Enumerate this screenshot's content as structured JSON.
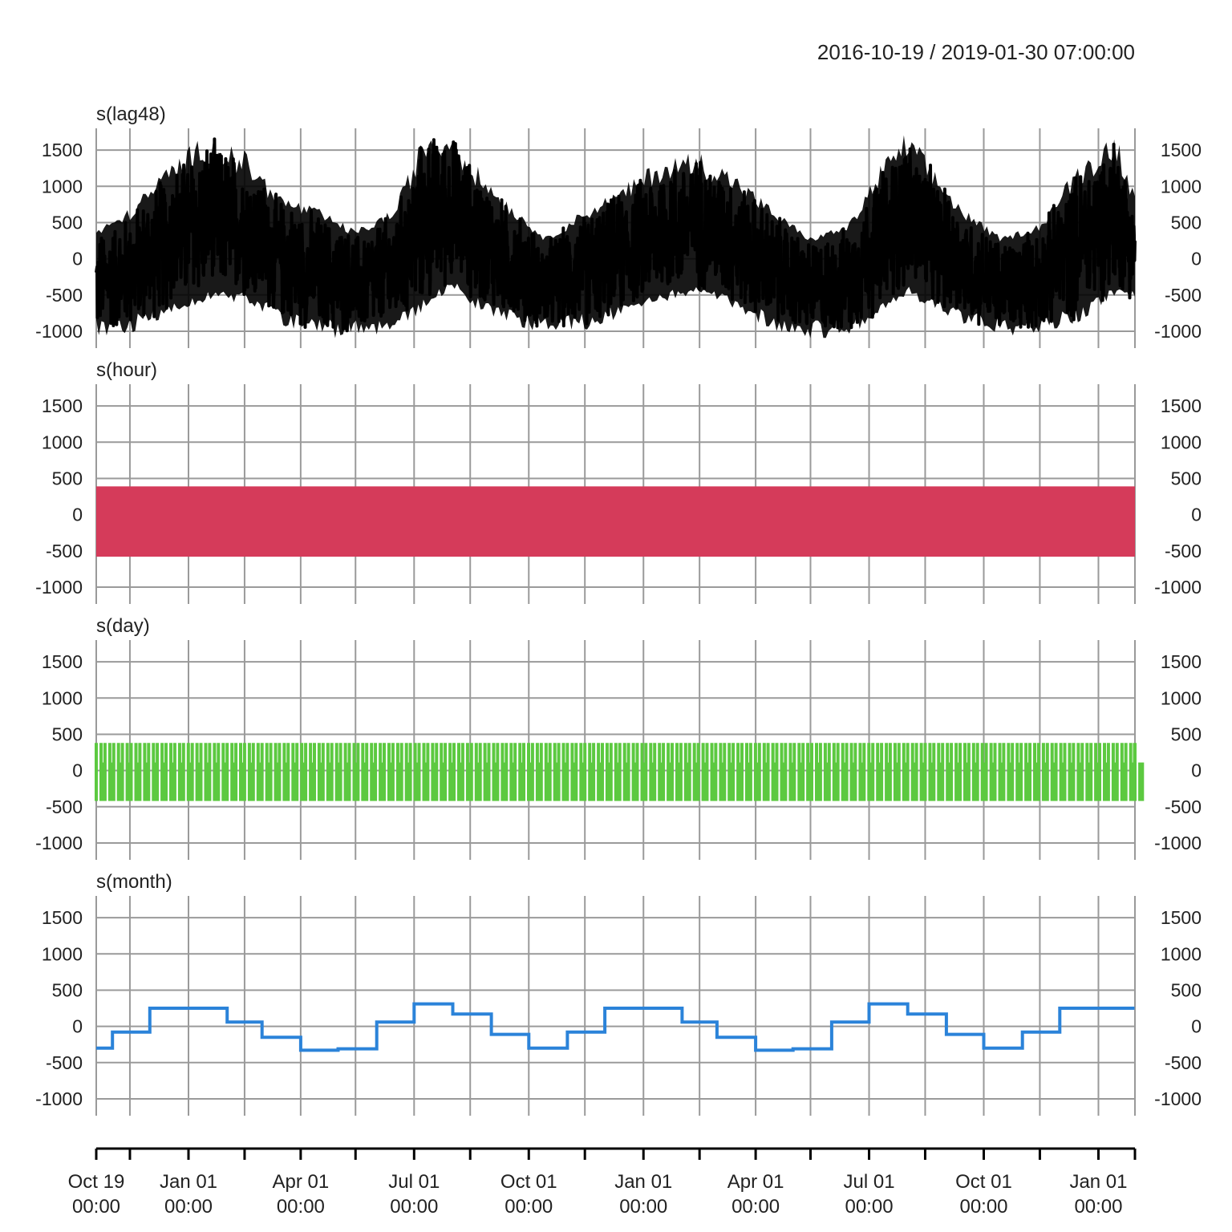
{
  "chart_data": {
    "type": "line",
    "title": "",
    "date_range_label": "2016-10-19 / 2019-01-30 07:00:00",
    "x_range": [
      "2016-10-19",
      "2019-01-30 07:00:00"
    ],
    "y_range": [
      -1100,
      1800
    ],
    "y_ticks": [
      1500,
      1000,
      500,
      0,
      -500,
      -1000
    ],
    "grid": true,
    "x_ticks": [
      {
        "date": "2016-10-19",
        "line1": "Oct 19",
        "line2": "00:00"
      },
      {
        "date": "2017-01-01",
        "line1": "Jan 01",
        "line2": "00:00"
      },
      {
        "date": "2017-04-01",
        "line1": "Apr 01",
        "line2": "00:00"
      },
      {
        "date": "2017-07-01",
        "line1": "Jul 01",
        "line2": "00:00"
      },
      {
        "date": "2017-10-01",
        "line1": "Oct 01",
        "line2": "00:00"
      },
      {
        "date": "2018-01-01",
        "line1": "Jan 01",
        "line2": "00:00"
      },
      {
        "date": "2018-04-01",
        "line1": "Apr 01",
        "line2": "00:00"
      },
      {
        "date": "2018-07-01",
        "line1": "Jul 01",
        "line2": "00:00"
      },
      {
        "date": "2018-10-01",
        "line1": "Oct 01",
        "line2": "00:00"
      },
      {
        "date": "2019-01-01",
        "line1": "Jan 01",
        "line2": "00:00"
      }
    ],
    "panels": [
      {
        "name": "s(lag48)",
        "color": "#000000",
        "kind": "noisy",
        "envelope_dates": [
          "2016-10-19",
          "2016-11-15",
          "2016-12-15",
          "2017-01-15",
          "2017-02-15",
          "2017-03-15",
          "2017-04-15",
          "2017-05-15",
          "2017-06-15",
          "2017-07-10",
          "2017-08-01",
          "2017-08-20",
          "2017-09-15",
          "2017-10-15",
          "2017-11-15",
          "2017-12-15",
          "2018-01-15",
          "2018-02-15",
          "2018-03-15",
          "2018-04-15",
          "2018-05-15",
          "2018-06-15",
          "2018-07-10",
          "2018-08-01",
          "2018-08-20",
          "2018-09-15",
          "2018-10-15",
          "2018-11-15",
          "2018-12-15",
          "2019-01-15",
          "2019-01-30"
        ],
        "upper": [
          400,
          700,
          1300,
          1750,
          1500,
          900,
          700,
          400,
          700,
          1800,
          1800,
          1300,
          800,
          300,
          700,
          1000,
          1400,
          1500,
          1200,
          700,
          300,
          500,
          1300,
          1800,
          1300,
          700,
          300,
          500,
          1300,
          1800,
          900
        ],
        "lower": [
          -1100,
          -1050,
          -800,
          -600,
          -600,
          -900,
          -1100,
          -1100,
          -1050,
          -700,
          -400,
          -700,
          -900,
          -1050,
          -1000,
          -800,
          -600,
          -500,
          -700,
          -1000,
          -1100,
          -1100,
          -800,
          -500,
          -700,
          -900,
          -1100,
          -1050,
          -900,
          -500,
          -600
        ]
      },
      {
        "name": "s(hour)",
        "color": "#d53b5a",
        "kind": "band",
        "band": [
          -580,
          390
        ]
      },
      {
        "name": "s(day)",
        "color": "#5cc940",
        "kind": "weekly",
        "band": [
          -420,
          380
        ]
      },
      {
        "name": "s(month)",
        "color": "#2b83d9",
        "kind": "step",
        "steps": [
          {
            "start": "2016-10-19",
            "end": "2016-11-01",
            "value": -300
          },
          {
            "start": "2016-11-01",
            "end": "2016-12-01",
            "value": -80
          },
          {
            "start": "2016-12-01",
            "end": "2017-02-01",
            "value": 250
          },
          {
            "start": "2017-02-01",
            "end": "2017-03-01",
            "value": 60
          },
          {
            "start": "2017-03-01",
            "end": "2017-04-01",
            "value": -150
          },
          {
            "start": "2017-04-01",
            "end": "2017-05-01",
            "value": -330
          },
          {
            "start": "2017-05-01",
            "end": "2017-06-01",
            "value": -310
          },
          {
            "start": "2017-06-01",
            "end": "2017-07-01",
            "value": 60
          },
          {
            "start": "2017-07-01",
            "end": "2017-08-01",
            "value": 310
          },
          {
            "start": "2017-08-01",
            "end": "2017-09-01",
            "value": 170
          },
          {
            "start": "2017-09-01",
            "end": "2017-10-01",
            "value": -110
          },
          {
            "start": "2017-10-01",
            "end": "2017-11-01",
            "value": -300
          },
          {
            "start": "2017-11-01",
            "end": "2017-12-01",
            "value": -80
          },
          {
            "start": "2017-12-01",
            "end": "2018-02-01",
            "value": 250
          },
          {
            "start": "2018-02-01",
            "end": "2018-03-01",
            "value": 60
          },
          {
            "start": "2018-03-01",
            "end": "2018-04-01",
            "value": -150
          },
          {
            "start": "2018-04-01",
            "end": "2018-05-01",
            "value": -330
          },
          {
            "start": "2018-05-01",
            "end": "2018-06-01",
            "value": -310
          },
          {
            "start": "2018-06-01",
            "end": "2018-07-01",
            "value": 60
          },
          {
            "start": "2018-07-01",
            "end": "2018-08-01",
            "value": 310
          },
          {
            "start": "2018-08-01",
            "end": "2018-09-01",
            "value": 170
          },
          {
            "start": "2018-09-01",
            "end": "2018-10-01",
            "value": -110
          },
          {
            "start": "2018-10-01",
            "end": "2018-11-01",
            "value": -300
          },
          {
            "start": "2018-11-01",
            "end": "2018-12-01",
            "value": -80
          },
          {
            "start": "2018-12-01",
            "end": "2019-01-30",
            "value": 250
          }
        ]
      }
    ]
  }
}
